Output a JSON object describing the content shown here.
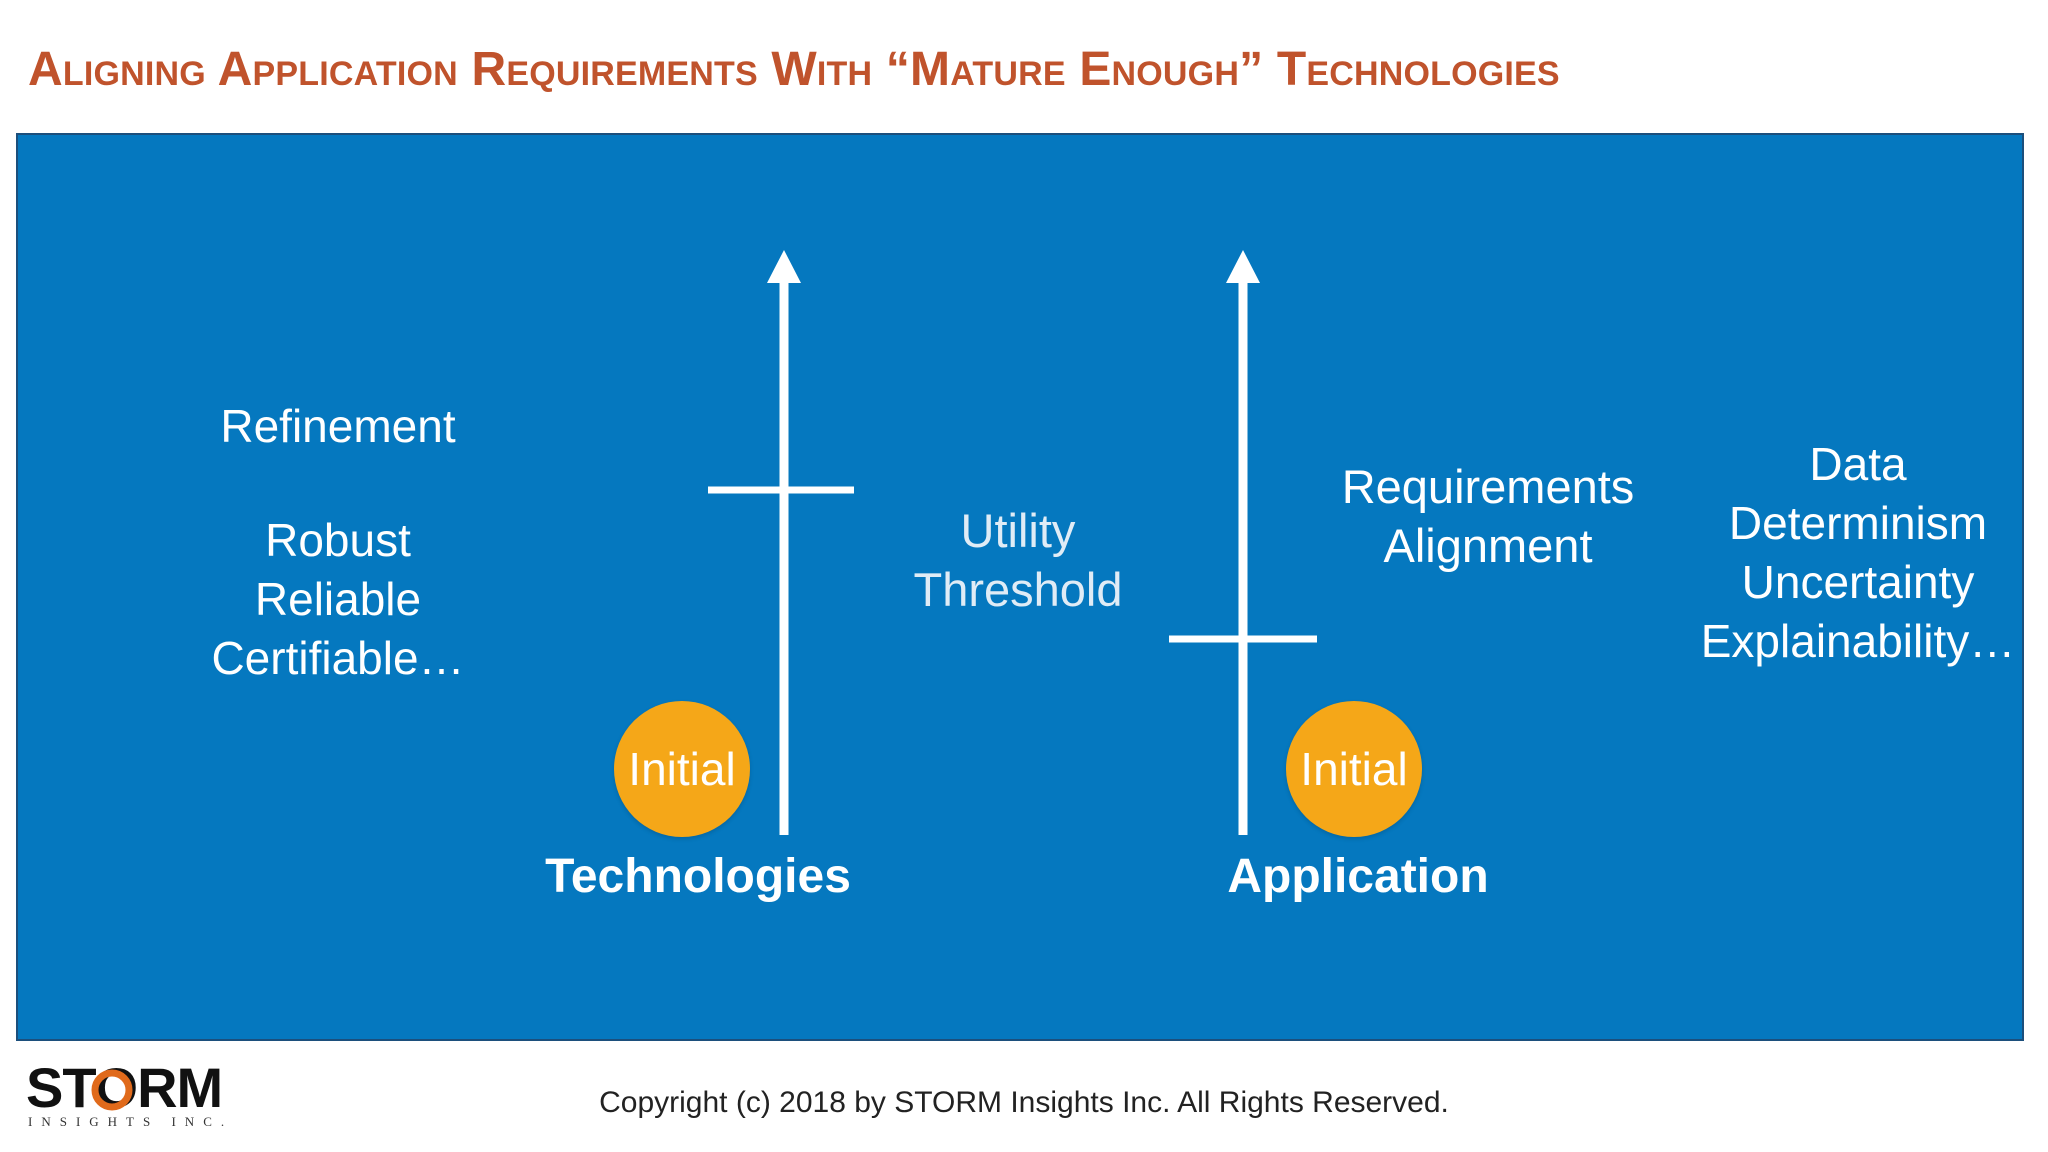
{
  "header": {
    "title": "Aligning Application Requirements With “Mature Enough” Technologies"
  },
  "diagram": {
    "left_block": {
      "heading": "Refinement",
      "lines": [
        "Robust",
        "Reliable",
        "Certifiable…"
      ]
    },
    "middle_block": {
      "lines": [
        "Utility",
        "Threshold"
      ]
    },
    "right_block": {
      "lines": [
        "Requirements",
        "Alignment"
      ]
    },
    "far_right_block": {
      "lines": [
        "Data",
        "Determinism",
        "Uncertainty",
        "Explainability…"
      ]
    },
    "technologies_axis": {
      "label": "Technologies",
      "start_badge": "Initial"
    },
    "application_axis": {
      "label": "Application",
      "start_badge": "Initial"
    },
    "colors": {
      "panel": "#0578bf",
      "title": "#c0532c",
      "badge": "#f5a718"
    }
  },
  "footer": {
    "logo_word": "STORM",
    "logo_sub": "INSIGHTS INC.",
    "copyright": "Copyright (c) 2018 by STORM Insights Inc. All Rights Reserved."
  }
}
